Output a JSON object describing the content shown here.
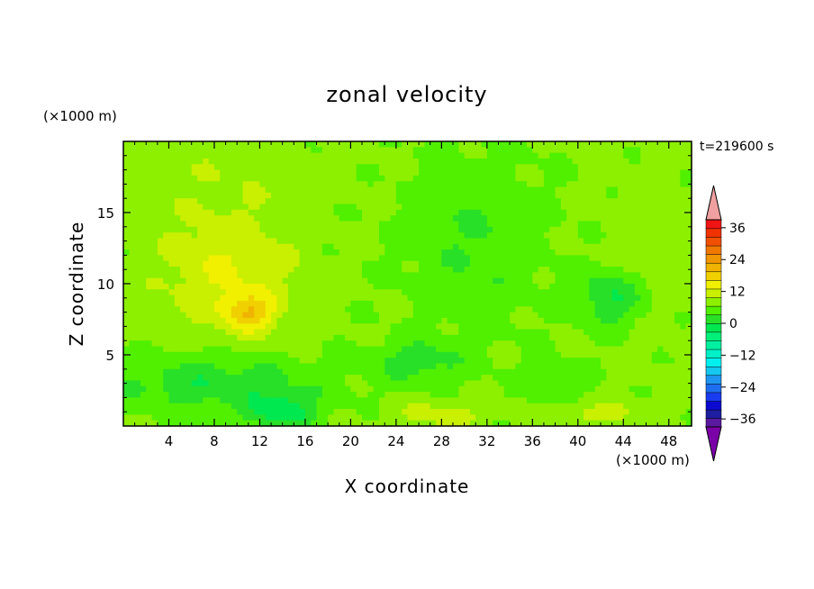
{
  "chart_data": {
    "type": "heatmap",
    "title": "zonal velocity",
    "xlabel": "X coordinate",
    "ylabel": "Z coordinate",
    "x_unit_label": "(×1000 m)",
    "y_unit_label": "(×1000 m)",
    "time_label": "t=219600 s",
    "xlim": [
      0,
      50
    ],
    "ylim": [
      0,
      20
    ],
    "x_ticks": [
      4,
      8,
      12,
      16,
      20,
      24,
      28,
      32,
      36,
      40,
      44,
      48
    ],
    "y_ticks": [
      5,
      10,
      15
    ],
    "colorbar": {
      "levels": [
        -42,
        -39,
        -36,
        -33,
        -30,
        -27,
        -24,
        -21,
        -18,
        -15,
        -12,
        -9,
        -6,
        -3,
        0,
        3,
        6,
        9,
        12,
        15,
        18,
        21,
        24,
        27,
        30,
        33,
        36,
        39,
        42
      ],
      "tick_labels": [
        "36",
        "24",
        "12",
        "0",
        "−12",
        "−24",
        "−36"
      ],
      "tick_values": [
        36,
        24,
        12,
        0,
        -12,
        -24,
        -36
      ],
      "colors": [
        "#7a00a8",
        "#5a1aa0",
        "#1e1ea0",
        "#0a0ad0",
        "#1a3cf0",
        "#1e6ef0",
        "#1e96f0",
        "#14c8f0",
        "#00f0f0",
        "#00f0c8",
        "#00f0a0",
        "#00f07a",
        "#00e850",
        "#28e028",
        "#50f000",
        "#8cf000",
        "#c8f000",
        "#f0f000",
        "#f0d000",
        "#f0b400",
        "#f09600",
        "#f07800",
        "#f05000",
        "#f03200",
        "#f01414",
        "#f0a0a0"
      ],
      "extend": "both"
    },
    "features": [
      {
        "name": "positive-lobe-outer",
        "x": 9,
        "z": 11,
        "sx": 6.0,
        "sz": 4.5,
        "value": 5.5
      },
      {
        "name": "positive-lobe-core",
        "x": 11,
        "z": 8,
        "sx": 2.2,
        "sz": 1.3,
        "value": 9
      },
      {
        "name": "top-green-band",
        "x": 8,
        "z": 18,
        "sx": 10,
        "sz": 2.5,
        "value": 1.5
      },
      {
        "name": "right-green-band",
        "x": 46,
        "z": 12,
        "sx": 4,
        "sz": 6,
        "value": 1.5
      },
      {
        "name": "central-plume",
        "x": 31,
        "z": 13,
        "sx": 6,
        "sz": 6,
        "value": -3.5
      },
      {
        "name": "right-negative-cell",
        "x": 43,
        "z": 9,
        "sx": 3,
        "sz": 2,
        "value": -7
      },
      {
        "name": "lower-negative-band",
        "x": 8,
        "z": 3,
        "sx": 9,
        "sz": 2,
        "value": -6
      },
      {
        "name": "bottom-blue-core",
        "x": 14,
        "z": 1,
        "sx": 3,
        "sz": 1.2,
        "value": -8
      },
      {
        "name": "lower-mid-negative",
        "x": 26,
        "z": 4.5,
        "sx": 4,
        "sz": 1.5,
        "value": -5
      },
      {
        "name": "bottom-positive-1",
        "x": 28,
        "z": 0.8,
        "sx": 4,
        "sz": 1,
        "value": 4
      },
      {
        "name": "bottom-positive-2",
        "x": 42,
        "z": 0.8,
        "sx": 4,
        "sz": 1,
        "value": 3.5
      },
      {
        "name": "lower-right-negative",
        "x": 38,
        "z": 3,
        "sx": 3,
        "sz": 1.3,
        "value": -3
      }
    ]
  }
}
